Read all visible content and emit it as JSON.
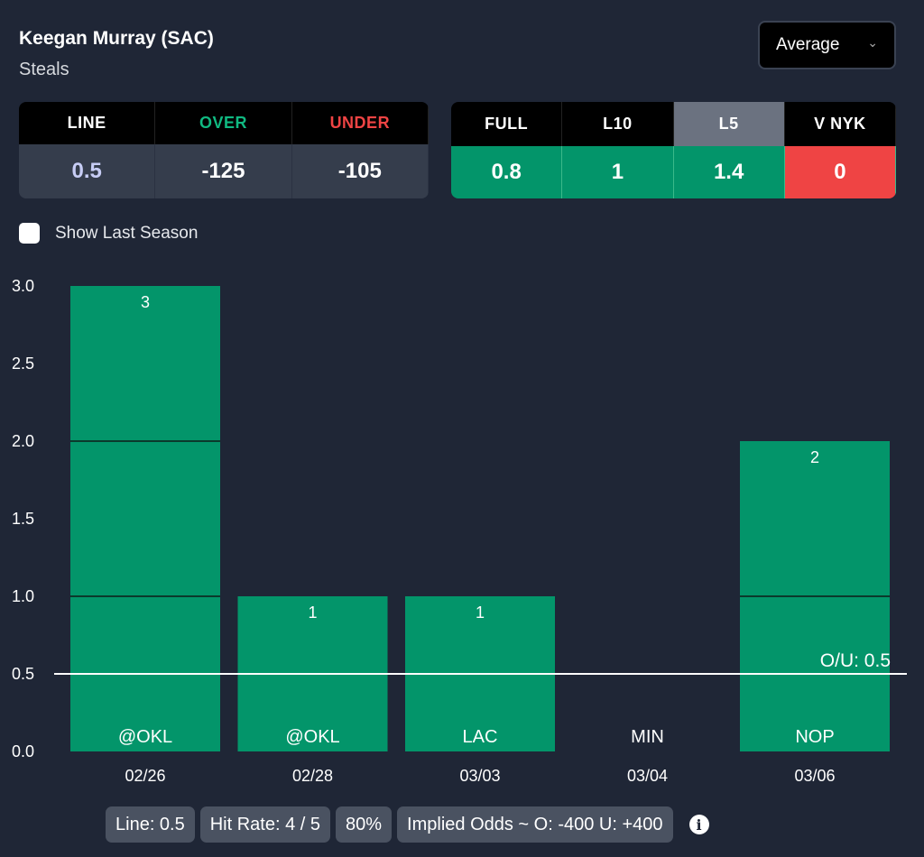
{
  "header": {
    "player": "Keegan Murray (SAC)",
    "stat": "Steals",
    "dropdown": "Average"
  },
  "odds": {
    "headers": [
      "LINE",
      "OVER",
      "UNDER"
    ],
    "values": [
      "0.5",
      "-125",
      "-105"
    ],
    "header_colors": [
      "#ffffff",
      "#10b981",
      "#ef4444"
    ],
    "value_colors": [
      "#c7cdf5",
      "#ffffff",
      "#ffffff"
    ]
  },
  "averages": {
    "headers": [
      "FULL",
      "L10",
      "L5",
      "V NYK"
    ],
    "values": [
      "0.8",
      "1",
      "1.4",
      "0"
    ],
    "selected": "L5",
    "value_colors": [
      "#03956a",
      "#03956a",
      "#03956a",
      "#ef4444"
    ]
  },
  "show_last_season": {
    "label": "Show Last Season",
    "checked": false
  },
  "chart_data": {
    "type": "bar",
    "categories": [
      "02/26",
      "02/28",
      "03/03",
      "03/04",
      "03/06"
    ],
    "opponents": [
      "@OKL",
      "@OKL",
      "LAC",
      "MIN",
      "NOP"
    ],
    "values": [
      3,
      1,
      1,
      0,
      2
    ],
    "ylim": [
      0,
      3
    ],
    "yticks": [
      "0.0",
      "0.5",
      "1.0",
      "1.5",
      "2.0",
      "2.5",
      "3.0"
    ],
    "line": 0.5,
    "line_label": "O/U: 0.5",
    "bar_color": "#03956a"
  },
  "footer": {
    "line": "Line: 0.5",
    "hit_rate": "Hit Rate: 4 / 5",
    "pct": "80%",
    "implied": "Implied Odds ~ O: -400 U: +400"
  }
}
